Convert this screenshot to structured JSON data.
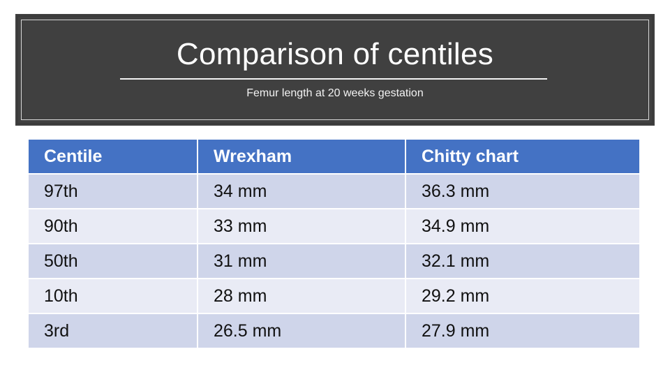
{
  "header": {
    "title": "Comparison of centiles",
    "subtitle": "Femur length at 20 weeks gestation"
  },
  "table": {
    "columns": [
      "Centile",
      "Wrexham",
      "Chitty chart"
    ],
    "rows": [
      [
        "97th",
        "34 mm",
        "36.3 mm"
      ],
      [
        "90th",
        "33 mm",
        "34.9 mm"
      ],
      [
        "50th",
        "31 mm",
        "32.1 mm"
      ],
      [
        "10th",
        "28 mm",
        "29.2 mm"
      ],
      [
        "3rd",
        "26.5 mm",
        "27.9 mm"
      ]
    ]
  },
  "colors": {
    "title_background": "#404040",
    "header_row": "#4472c4",
    "row_band_dark": "#cfd5ea",
    "row_band_light": "#e9ebf5"
  }
}
